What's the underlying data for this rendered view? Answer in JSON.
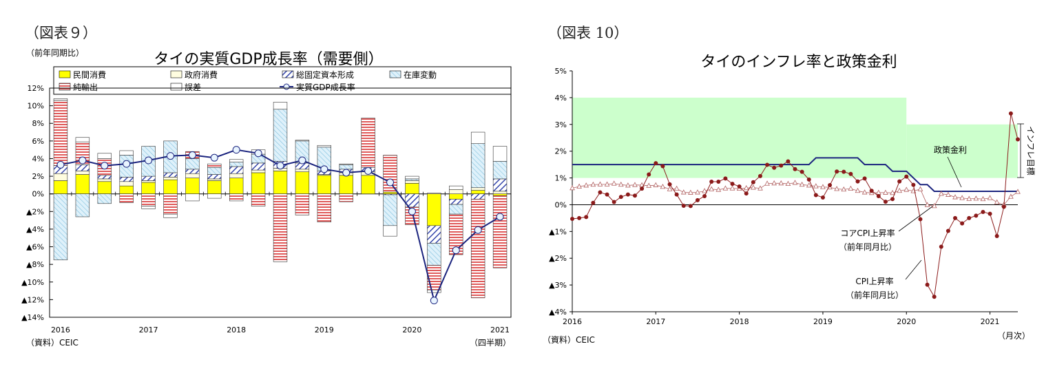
{
  "chart1": {
    "figure_no": "（図表９）",
    "unit": "（前年同期比）",
    "source": "（資料）CEIC",
    "period_unit": "（四半期）",
    "legend": {
      "private_consumption": "民間消費",
      "government_consumption": "政府消費",
      "fixed_capital": "総固定資本形成",
      "inventory": "在庫変動",
      "net_exports": "純輸出",
      "error": "誤差",
      "gdp_growth": "実質GDP成長率"
    },
    "colors": {
      "private_consumption": "#ffff00",
      "government_consumption": "#fffde0",
      "fixed_capital": "#3344aa",
      "inventory": "#a8d8ee",
      "net_exports": "#e06060",
      "error": "#ffffff",
      "gdp_line": "#1a237e"
    }
  },
  "chart2": {
    "figure_no": "（図表 10）",
    "source": "（資料）CEIC",
    "period_unit": "（月次）",
    "annotations": {
      "policy_rate": "政策金利",
      "core_cpi_line1": "コアCPI上昇率",
      "core_cpi_line2": "（前年同月比）",
      "cpi_line1": "CPI上昇率",
      "cpi_line2": "（前年同月比）",
      "inflation_target": "インフレ目標"
    },
    "colors": {
      "target_band": "#ccffcc",
      "policy_rate": "#1a237e",
      "cpi": "#8b1a1a",
      "core_cpi": "#b06060"
    }
  },
  "chart_data": [
    {
      "type": "bar",
      "title": "タイの実質GDP成長率（需要側）",
      "xlabel": "",
      "ylabel": "",
      "ylim": [
        -14,
        12
      ],
      "yticks": [
        12,
        10,
        8,
        6,
        4,
        2,
        0,
        -2,
        -4,
        -6,
        -8,
        -10,
        -12,
        -14
      ],
      "ytick_labels": [
        "12%",
        "10%",
        "8%",
        "6%",
        "4%",
        "2%",
        "0%",
        "▲2%",
        "▲4%",
        "▲6%",
        "▲8%",
        "▲10%",
        "▲12%",
        "▲14%"
      ],
      "xtick_labels": [
        "2016",
        "2017",
        "2018",
        "2019",
        "2020",
        "2021"
      ],
      "stacked": true,
      "categories": [
        "2016Q1",
        "2016Q2",
        "2016Q3",
        "2016Q4",
        "2017Q1",
        "2017Q2",
        "2017Q3",
        "2017Q4",
        "2018Q1",
        "2018Q2",
        "2018Q3",
        "2018Q4",
        "2019Q1",
        "2019Q2",
        "2019Q3",
        "2019Q4",
        "2020Q1",
        "2020Q2",
        "2020Q3",
        "2020Q4",
        "2021Q1"
      ],
      "series": [
        {
          "name": "民間消費",
          "values": [
            1.5,
            2.2,
            1.4,
            0.9,
            1.3,
            1.6,
            1.8,
            1.5,
            1.8,
            2.4,
            2.6,
            2.5,
            2.1,
            2.1,
            2.1,
            0.2,
            1.2,
            -3.6,
            -0.6,
            0.4,
            -0.2
          ]
        },
        {
          "name": "政府消費",
          "values": [
            0.8,
            0.4,
            0.3,
            0.5,
            0.2,
            0.3,
            0.5,
            0.2,
            0.5,
            0.3,
            0.3,
            0.3,
            0.1,
            0.3,
            0.4,
            0.0,
            0.3,
            0.1,
            0.5,
            0.3,
            0.3
          ]
        },
        {
          "name": "総固定資本形成",
          "values": [
            0.9,
            0.7,
            0.4,
            0.5,
            0.5,
            0.5,
            0.5,
            0.5,
            0.8,
            0.8,
            0.8,
            0.7,
            0.4,
            0.4,
            0.5,
            -0.1,
            -1.5,
            -2.0,
            -0.6,
            -0.6,
            1.4
          ]
        },
        {
          "name": "在庫変動",
          "values": [
            -7.5,
            -2.6,
            -1.1,
            2.5,
            3.4,
            3.6,
            1.2,
            0.8,
            0.5,
            1.0,
            5.9,
            2.5,
            2.7,
            0.5,
            0.0,
            -3.5,
            0.2,
            -2.5,
            -1.1,
            5.0,
            2.0
          ]
        },
        {
          "name": "純輸出",
          "values": [
            7.4,
            2.6,
            1.9,
            -1.0,
            -1.4,
            -2.3,
            0.8,
            0.4,
            -0.8,
            -1.4,
            -7.7,
            -2.4,
            -3.2,
            -0.9,
            5.6,
            4.2,
            -2.0,
            -2.8,
            -4.6,
            -11.2,
            -8.2
          ]
        },
        {
          "name": "誤差",
          "values": [
            0.2,
            0.5,
            0.6,
            0.5,
            -0.3,
            -0.4,
            -0.8,
            -0.5,
            0.3,
            0.5,
            0.8,
            0.1,
            0.2,
            0.1,
            0.0,
            -1.2,
            0.3,
            -0.3,
            0.4,
            1.3,
            1.7
          ]
        }
      ],
      "line": {
        "name": "実質GDP成長率",
        "values": [
          3.3,
          3.8,
          3.2,
          3.4,
          3.8,
          4.3,
          4.4,
          4.1,
          5.0,
          4.6,
          3.2,
          3.8,
          2.8,
          2.4,
          2.6,
          1.3,
          -2.0,
          -12.1,
          -6.4,
          -4.1,
          -2.6
        ]
      }
    },
    {
      "type": "line",
      "title": "タイのインフレ率と政策金利",
      "xlabel": "",
      "ylabel": "",
      "ylim": [
        -4,
        5
      ],
      "yticks": [
        5,
        4,
        3,
        2,
        1,
        0,
        -1,
        -2,
        -3,
        -4
      ],
      "ytick_labels": [
        "5%",
        "4%",
        "3%",
        "2%",
        "1%",
        "0%",
        "▲1%",
        "▲2%",
        "▲3%",
        "▲4%"
      ],
      "xtick_labels": [
        "2016",
        "2017",
        "2018",
        "2019",
        "2020",
        "2021"
      ],
      "x_start": "2016-01",
      "x_end": "2021-05",
      "inflation_target_band": [
        {
          "from": "2016-01",
          "to": "2019-12",
          "low": 1.0,
          "high": 4.0
        },
        {
          "from": "2020-01",
          "to": "2021-05",
          "low": 1.0,
          "high": 3.0
        }
      ],
      "series": [
        {
          "name": "CPI上昇率",
          "values": [
            -0.53,
            -0.5,
            -0.46,
            0.07,
            0.46,
            0.38,
            0.1,
            0.29,
            0.38,
            0.34,
            0.6,
            1.13,
            1.55,
            1.44,
            0.76,
            0.38,
            -0.04,
            -0.05,
            0.17,
            0.32,
            0.86,
            0.86,
            0.98,
            0.78,
            0.68,
            0.42,
            0.84,
            1.07,
            1.49,
            1.38,
            1.46,
            1.62,
            1.33,
            1.23,
            0.94,
            0.36,
            0.27,
            0.73,
            1.24,
            1.23,
            1.15,
            0.87,
            0.98,
            0.52,
            0.32,
            0.11,
            0.21,
            0.87,
            1.05,
            0.74,
            -0.54,
            -2.99,
            -3.44,
            -1.57,
            -0.98,
            -0.5,
            -0.7,
            -0.5,
            -0.41,
            -0.27,
            -0.34,
            -1.17,
            -0.08,
            3.41,
            2.44
          ]
        },
        {
          "name": "コアCPI上昇率",
          "values": [
            0.62,
            0.68,
            0.72,
            0.75,
            0.76,
            0.76,
            0.79,
            0.75,
            0.72,
            0.74,
            0.73,
            0.71,
            0.73,
            0.67,
            0.58,
            0.6,
            0.46,
            0.45,
            0.46,
            0.51,
            0.58,
            0.56,
            0.61,
            0.61,
            0.6,
            0.62,
            0.64,
            0.61,
            0.79,
            0.8,
            0.8,
            0.78,
            0.82,
            0.75,
            0.72,
            0.69,
            0.66,
            0.65,
            0.59,
            0.57,
            0.6,
            0.52,
            0.46,
            0.44,
            0.45,
            0.45,
            0.44,
            0.52,
            0.56,
            0.51,
            0.58,
            -0.01,
            -0.05,
            0.41,
            0.37,
            0.28,
            0.25,
            0.22,
            0.23,
            0.21,
            0.25,
            0.09,
            0.0,
            0.3,
            0.48
          ]
        },
        {
          "name": "政策金利",
          "values": [
            1.5,
            1.5,
            1.5,
            1.5,
            1.5,
            1.5,
            1.5,
            1.5,
            1.5,
            1.5,
            1.5,
            1.5,
            1.5,
            1.5,
            1.5,
            1.5,
            1.5,
            1.5,
            1.5,
            1.5,
            1.5,
            1.5,
            1.5,
            1.5,
            1.5,
            1.5,
            1.5,
            1.5,
            1.5,
            1.5,
            1.5,
            1.5,
            1.5,
            1.5,
            1.5,
            1.75,
            1.75,
            1.75,
            1.75,
            1.75,
            1.75,
            1.75,
            1.5,
            1.5,
            1.5,
            1.5,
            1.25,
            1.25,
            1.25,
            1.0,
            0.75,
            0.75,
            0.5,
            0.5,
            0.5,
            0.5,
            0.5,
            0.5,
            0.5,
            0.5,
            0.5,
            0.5,
            0.5,
            0.5,
            0.5
          ]
        }
      ]
    }
  ]
}
